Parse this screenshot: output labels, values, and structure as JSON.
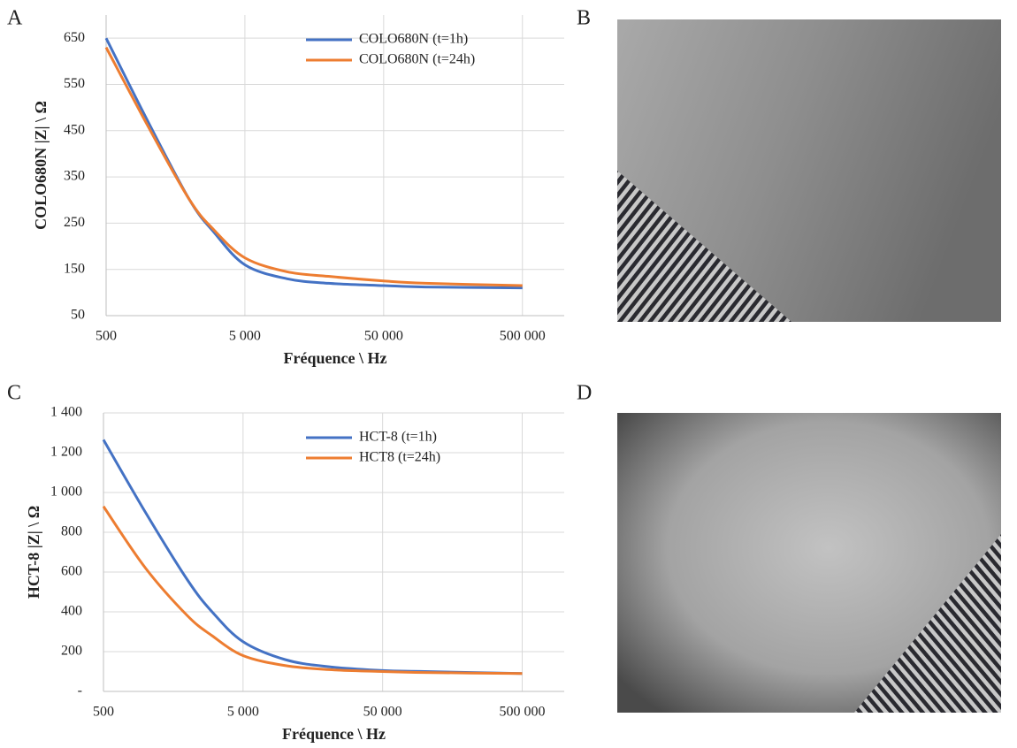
{
  "panel_labels": [
    "A",
    "B",
    "C",
    "D"
  ],
  "chart_data": [
    {
      "type": "line",
      "xscale": "log",
      "grid": true,
      "legend": "upper right",
      "x_label": "Fréquence \\ Hz",
      "y_label": "COLO680N |Z| \\ Ω",
      "x": [
        500,
        1000,
        2000,
        3000,
        5000,
        10000,
        20000,
        50000,
        100000,
        500000
      ],
      "xlim": [
        500,
        1000000
      ],
      "xticks": [
        {
          "value": 500,
          "label": "500"
        },
        {
          "value": 5000,
          "label": "5 000"
        },
        {
          "value": 50000,
          "label": "50 000"
        },
        {
          "value": 500000,
          "label": "500 000"
        }
      ],
      "ylim": [
        50,
        700
      ],
      "yticks": [
        50,
        150,
        250,
        350,
        450,
        550,
        650
      ],
      "series": [
        {
          "name": "COLO680N (t=1h)",
          "color": "#4472c4",
          "values": [
            650,
            470,
            300,
            230,
            160,
            130,
            120,
            115,
            112,
            110
          ]
        },
        {
          "name": "COLO680N (t=24h)",
          "color": "#ed7d31",
          "values": [
            630,
            460,
            300,
            235,
            175,
            145,
            135,
            125,
            120,
            115
          ]
        }
      ]
    },
    {
      "type": "line",
      "xscale": "log",
      "grid": true,
      "legend": "upper right",
      "x_label": "Fréquence \\ Hz",
      "y_label": "HCT-8 |Z| \\ Ω",
      "x": [
        500,
        1000,
        2000,
        3000,
        5000,
        10000,
        20000,
        50000,
        100000,
        500000
      ],
      "xlim": [
        500,
        1000000
      ],
      "xticks": [
        {
          "value": 500,
          "label": "500"
        },
        {
          "value": 5000,
          "label": "5 000"
        },
        {
          "value": 50000,
          "label": "50 000"
        },
        {
          "value": 500000,
          "label": "500 000"
        }
      ],
      "ylim": [
        0,
        1400
      ],
      "yticks": [
        {
          "value": 0,
          "label": "-"
        },
        200,
        400,
        600,
        800,
        {
          "value": 1000,
          "label": "1 000"
        },
        {
          "value": 1200,
          "label": "1 200"
        },
        {
          "value": 1400,
          "label": "1 400"
        }
      ],
      "series": [
        {
          "name": "HCT-8 (t=1h)",
          "color": "#4472c4",
          "values": [
            1265,
            900,
            560,
            400,
            250,
            160,
            125,
            105,
            100,
            90
          ]
        },
        {
          "name": "HCT8 (t=24h)",
          "color": "#ed7d31",
          "values": [
            930,
            620,
            380,
            280,
            180,
            130,
            110,
            100,
            95,
            90
          ]
        }
      ]
    }
  ]
}
